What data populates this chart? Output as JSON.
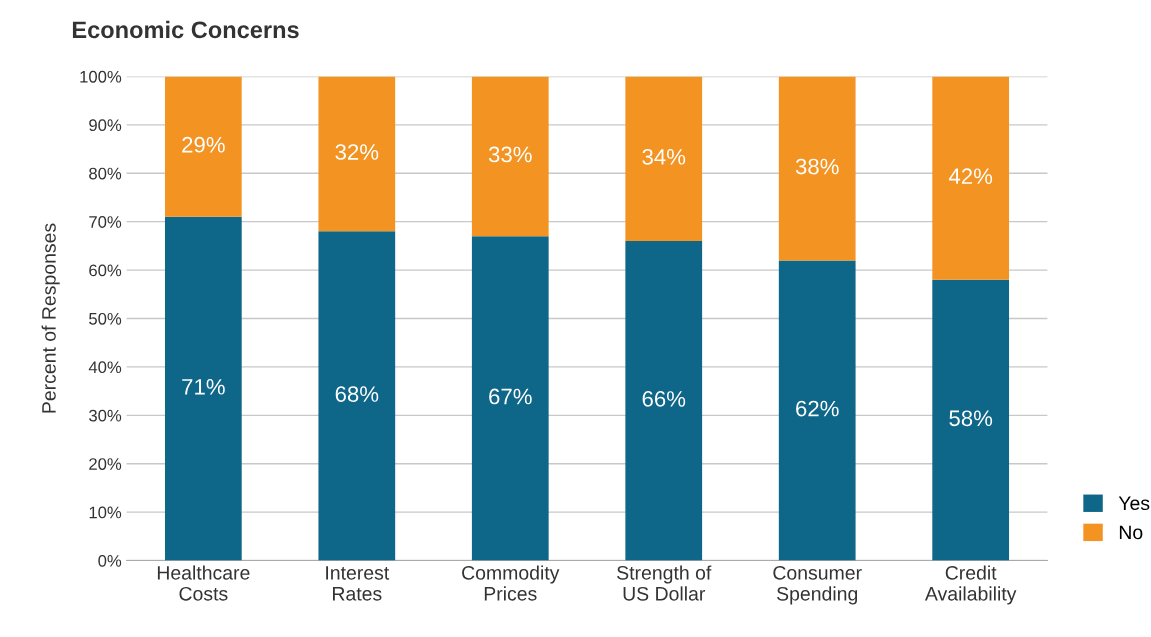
{
  "chart_data": {
    "type": "bar",
    "title": "Economic Concerns",
    "ylabel": "Percent of Responses",
    "categories": [
      "Healthcare\nCosts",
      "Interest\nRates",
      "Commodity\nPrices",
      "Strength of\nUS Dollar",
      "Consumer\nSpending",
      "Credit\nAvailability"
    ],
    "stacked": true,
    "series": [
      {
        "name": "Yes",
        "color": "#0e6688",
        "values": [
          71,
          68,
          67,
          66,
          62,
          58
        ],
        "value_labels": [
          "71%",
          "68%",
          "67%",
          "66%",
          "62%",
          "58%"
        ]
      },
      {
        "name": "No",
        "color": "#f39322",
        "values": [
          29,
          32,
          33,
          34,
          38,
          42
        ],
        "value_labels": [
          "29%",
          "32%",
          "33%",
          "34%",
          "38%",
          "42%"
        ]
      }
    ],
    "ylim": [
      0,
      100
    ],
    "yticks": [
      {
        "value": 0,
        "label": "0%"
      },
      {
        "value": 10,
        "label": "10%"
      },
      {
        "value": 20,
        "label": "20%"
      },
      {
        "value": 30,
        "label": "30%"
      },
      {
        "value": 40,
        "label": "40%"
      },
      {
        "value": 50,
        "label": "50%"
      },
      {
        "value": 60,
        "label": "60%"
      },
      {
        "value": 70,
        "label": "70%"
      },
      {
        "value": 80,
        "label": "80%"
      },
      {
        "value": 90,
        "label": "90%"
      },
      {
        "value": 100,
        "label": "100%"
      }
    ],
    "grid": "y",
    "legend": "bottom right"
  }
}
